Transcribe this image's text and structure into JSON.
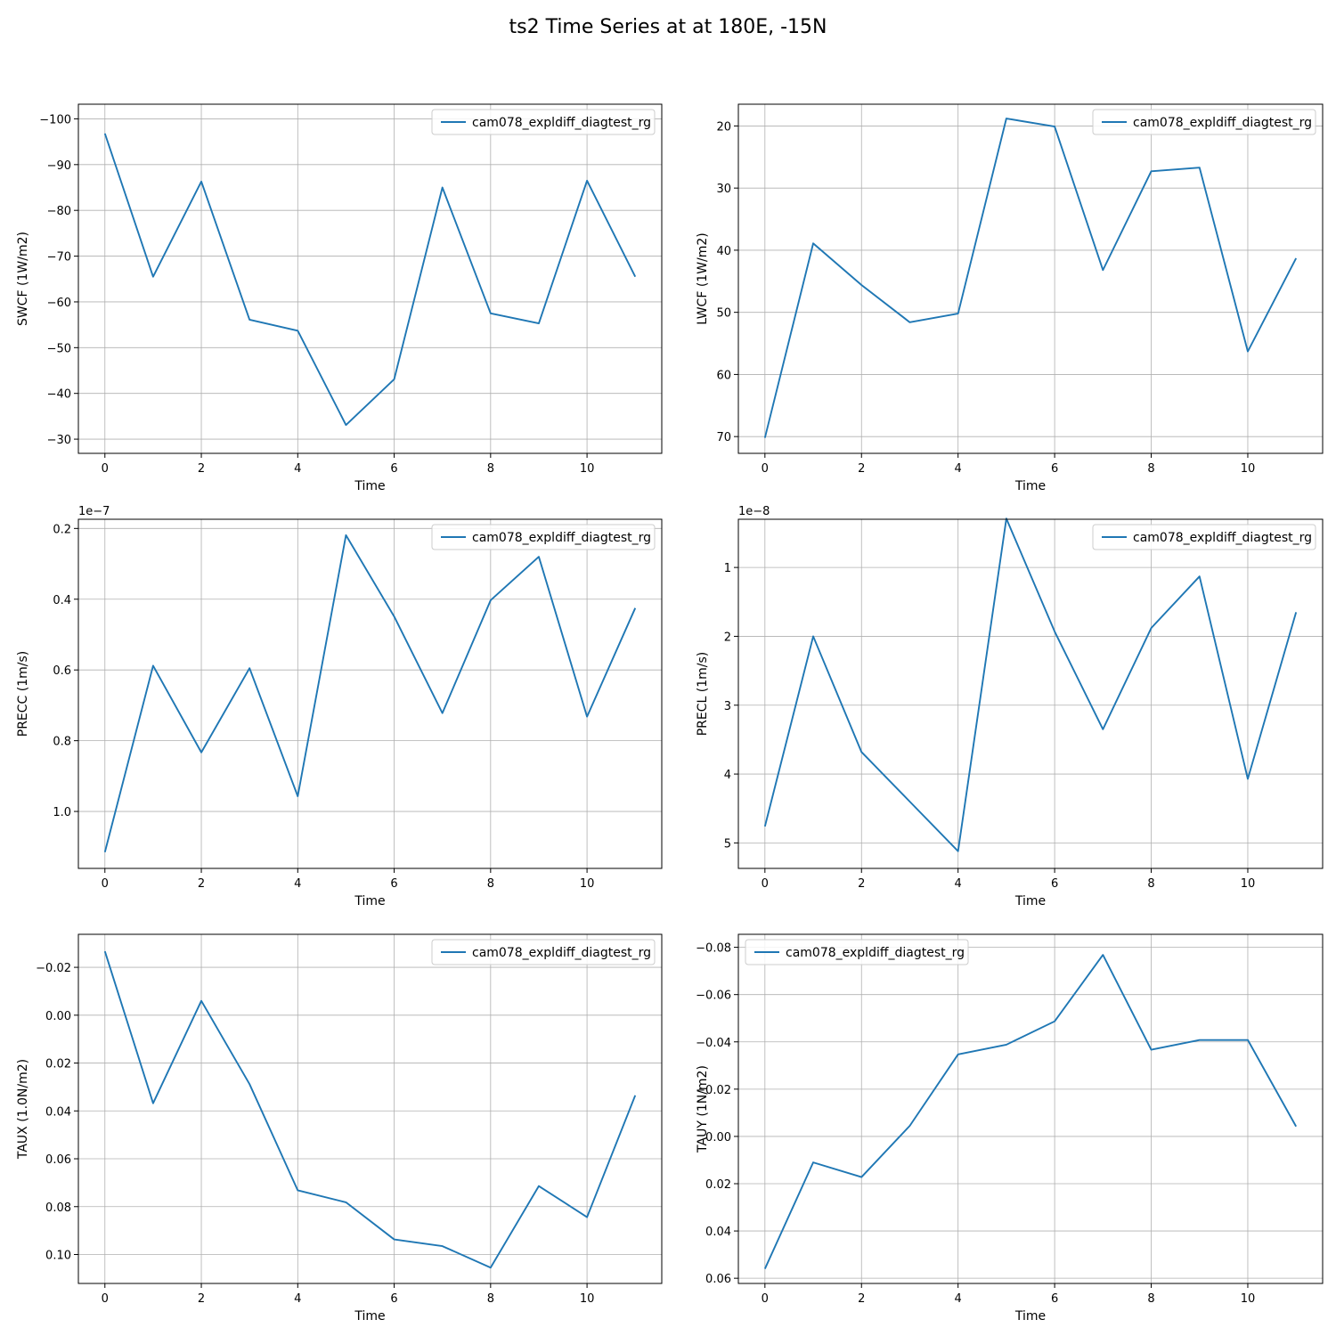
{
  "figure": {
    "title": "ts2 Time Series at at 180E, -15N"
  },
  "colors": {
    "line": "#1f77b4",
    "grid": "#b0b0b0",
    "axis": "#000000",
    "legend_border": "#cccccc"
  },
  "chart_data": [
    {
      "type": "line",
      "xlabel": "Time",
      "ylabel": "SWCF (1W/m2)",
      "y_inverted": true,
      "ylim": [
        -26.9,
        -103.2
      ],
      "xlim": [
        -0.55,
        11.55
      ],
      "xticks": [
        0,
        2,
        4,
        6,
        8,
        10
      ],
      "yticks": [
        -100,
        -90,
        -80,
        -70,
        -60,
        -50,
        -40,
        -30
      ],
      "ytick_labels": [
        "−100",
        "−90",
        "−80",
        "−70",
        "−60",
        "−50",
        "−40",
        "−30"
      ],
      "offset_label": "",
      "grid": true,
      "legend_loc": "upper right",
      "series": [
        {
          "name": "cam078_expldiff_diagtest_rg",
          "x": [
            0,
            1,
            2,
            3,
            4,
            5,
            6,
            7,
            8,
            9,
            10,
            11
          ],
          "y": [
            -96.8,
            -65.5,
            -86.3,
            -56.1,
            -53.7,
            -33.1,
            -43.1,
            -85.0,
            -57.5,
            -55.3,
            -86.5,
            -65.5
          ]
        }
      ]
    },
    {
      "type": "line",
      "xlabel": "Time",
      "ylabel": "LWCF (1W/m2)",
      "y_inverted": true,
      "ylim": [
        72.7,
        16.5
      ],
      "xlim": [
        -0.55,
        11.55
      ],
      "xticks": [
        0,
        2,
        4,
        6,
        8,
        10
      ],
      "yticks": [
        20,
        30,
        40,
        50,
        60,
        70
      ],
      "ytick_labels": [
        "20",
        "30",
        "40",
        "50",
        "60",
        "70"
      ],
      "offset_label": "",
      "grid": true,
      "legend_loc": "upper right",
      "series": [
        {
          "name": "cam078_expldiff_diagtest_rg",
          "x": [
            0,
            1,
            2,
            3,
            4,
            5,
            6,
            7,
            8,
            9,
            10,
            11
          ],
          "y": [
            70.2,
            38.9,
            45.6,
            51.6,
            50.2,
            18.8,
            20.1,
            43.2,
            27.3,
            26.7,
            56.3,
            41.3
          ]
        }
      ]
    },
    {
      "type": "line",
      "xlabel": "Time",
      "ylabel": "PRECC (1m/s)",
      "y_inverted": true,
      "ylim": [
        1.161,
        0.174
      ],
      "xlim": [
        -0.55,
        11.55
      ],
      "xticks": [
        0,
        2,
        4,
        6,
        8,
        10
      ],
      "yticks": [
        0.2,
        0.4,
        0.6,
        0.8,
        1.0
      ],
      "ytick_labels": [
        "0.2",
        "0.4",
        "0.6",
        "0.8",
        "1.0"
      ],
      "offset_label": "1e−7",
      "grid": true,
      "legend_loc": "upper right",
      "series": [
        {
          "name": "cam078_expldiff_diagtest_rg",
          "x": [
            0,
            1,
            2,
            3,
            4,
            5,
            6,
            7,
            8,
            9,
            10,
            11
          ],
          "y": [
            1.115,
            0.588,
            0.833,
            0.595,
            0.957,
            0.219,
            0.449,
            0.722,
            0.403,
            0.28,
            0.732,
            0.425
          ]
        }
      ]
    },
    {
      "type": "line",
      "xlabel": "Time",
      "ylabel": "PRECL (1m/s)",
      "y_inverted": true,
      "ylim": [
        5.37,
        0.3
      ],
      "xlim": [
        -0.55,
        11.55
      ],
      "xticks": [
        0,
        2,
        4,
        6,
        8,
        10
      ],
      "yticks": [
        1,
        2,
        3,
        4,
        5
      ],
      "ytick_labels": [
        "1",
        "2",
        "3",
        "4",
        "5"
      ],
      "offset_label": "1e−8",
      "grid": true,
      "legend_loc": "upper right",
      "series": [
        {
          "name": "cam078_expldiff_diagtest_rg",
          "x": [
            0,
            1,
            2,
            3,
            4,
            5,
            6,
            7,
            8,
            9,
            10,
            11
          ],
          "y": [
            4.76,
            2.0,
            3.68,
            4.4,
            5.12,
            0.29,
            1.93,
            3.35,
            1.88,
            1.13,
            4.07,
            1.65
          ]
        }
      ]
    },
    {
      "type": "line",
      "xlabel": "Time",
      "ylabel": "TAUX (1.0N/m2)",
      "y_inverted": true,
      "ylim": [
        0.1121,
        -0.0338
      ],
      "xlim": [
        -0.55,
        11.55
      ],
      "xticks": [
        0,
        2,
        4,
        6,
        8,
        10
      ],
      "yticks": [
        -0.02,
        0.0,
        0.02,
        0.04,
        0.06,
        0.08,
        0.1
      ],
      "ytick_labels": [
        "−0.02",
        "0.00",
        "0.02",
        "0.04",
        "0.06",
        "0.08",
        "0.10"
      ],
      "offset_label": "",
      "grid": true,
      "legend_loc": "upper right",
      "series": [
        {
          "name": "cam078_expldiff_diagtest_rg",
          "x": [
            0,
            1,
            2,
            3,
            4,
            5,
            6,
            7,
            8,
            9,
            10,
            11
          ],
          "y": [
            -0.0267,
            0.0368,
            -0.006,
            0.0288,
            0.0732,
            0.0782,
            0.0937,
            0.0965,
            0.1055,
            0.0714,
            0.0844,
            0.0335
          ]
        }
      ]
    },
    {
      "type": "line",
      "xlabel": "Time",
      "ylabel": "TAUY (1N/m2)",
      "y_inverted": true,
      "ylim": [
        0.0622,
        -0.0855
      ],
      "xlim": [
        -0.55,
        11.55
      ],
      "xticks": [
        0,
        2,
        4,
        6,
        8,
        10
      ],
      "yticks": [
        -0.08,
        -0.06,
        -0.04,
        -0.02,
        0.0,
        0.02,
        0.04,
        0.06
      ],
      "ytick_labels": [
        "−0.08",
        "−0.06",
        "−0.04",
        "−0.02",
        "0.00",
        "0.02",
        "0.04",
        "0.06"
      ],
      "offset_label": "",
      "grid": true,
      "legend_loc": "upper left",
      "series": [
        {
          "name": "cam078_expldiff_diagtest_rg",
          "x": [
            0,
            1,
            2,
            3,
            4,
            5,
            6,
            7,
            8,
            9,
            10,
            11
          ],
          "y": [
            0.056,
            0.011,
            0.0172,
            -0.0045,
            -0.0347,
            -0.0388,
            -0.0487,
            -0.0768,
            -0.0367,
            -0.0408,
            -0.0408,
            -0.0042
          ]
        }
      ]
    }
  ]
}
